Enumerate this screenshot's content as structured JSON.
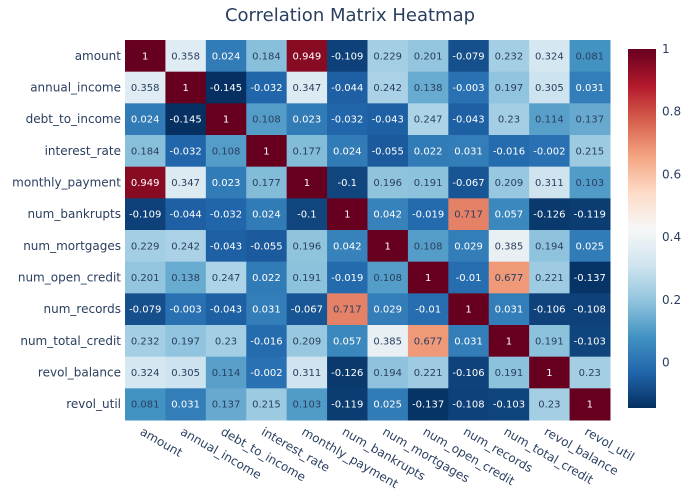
{
  "chart_data": {
    "type": "heatmap",
    "title": "Correlation Matrix Heatmap",
    "labels": [
      "amount",
      "annual_income",
      "debt_to_income",
      "interest_rate",
      "monthly_payment",
      "num_bankrupts",
      "num_mortgages",
      "num_open_credit",
      "num_records",
      "num_total_credit",
      "revol_balance",
      "revol_util"
    ],
    "z": [
      [
        "1",
        "0.358",
        "0.024",
        "0.184",
        "0.949",
        "-0.109",
        "0.229",
        "0.201",
        "-0.079",
        "0.232",
        "0.324",
        "0.081"
      ],
      [
        "0.358",
        "1",
        "-0.145",
        "-0.032",
        "0.347",
        "-0.044",
        "0.242",
        "0.138",
        "-0.003",
        "0.197",
        "0.305",
        "0.031"
      ],
      [
        "0.024",
        "-0.145",
        "1",
        "0.108",
        "0.023",
        "-0.032",
        "-0.043",
        "0.247",
        "-0.043",
        "0.23",
        "0.114",
        "0.137"
      ],
      [
        "0.184",
        "-0.032",
        "0.108",
        "1",
        "0.177",
        "0.024",
        "-0.055",
        "0.022",
        "0.031",
        "-0.016",
        "-0.002",
        "0.215"
      ],
      [
        "0.949",
        "0.347",
        "0.023",
        "0.177",
        "1",
        "-0.1",
        "0.196",
        "0.191",
        "-0.067",
        "0.209",
        "0.311",
        "0.103"
      ],
      [
        "-0.109",
        "-0.044",
        "-0.032",
        "0.024",
        "-0.1",
        "1",
        "0.042",
        "-0.019",
        "0.717",
        "0.057",
        "-0.126",
        "-0.119"
      ],
      [
        "0.229",
        "0.242",
        "-0.043",
        "-0.055",
        "0.196",
        "0.042",
        "1",
        "0.108",
        "0.029",
        "0.385",
        "0.194",
        "0.025"
      ],
      [
        "0.201",
        "0.138",
        "0.247",
        "0.022",
        "0.191",
        "-0.019",
        "0.108",
        "1",
        "-0.01",
        "0.677",
        "0.221",
        "-0.137"
      ],
      [
        "-0.079",
        "-0.003",
        "-0.043",
        "0.031",
        "-0.067",
        "0.717",
        "0.029",
        "-0.01",
        "1",
        "0.031",
        "-0.106",
        "-0.108"
      ],
      [
        "0.232",
        "0.197",
        "0.23",
        "-0.016",
        "0.209",
        "0.057",
        "0.385",
        "0.677",
        "0.031",
        "1",
        "0.191",
        "-0.103"
      ],
      [
        "0.324",
        "0.305",
        "0.114",
        "-0.002",
        "0.311",
        "-0.126",
        "0.194",
        "0.221",
        "-0.106",
        "0.191",
        "1",
        "0.23"
      ],
      [
        "0.081",
        "0.031",
        "0.137",
        "0.215",
        "0.103",
        "-0.119",
        "0.025",
        "-0.137",
        "-0.108",
        "-0.103",
        "0.23",
        "1"
      ]
    ],
    "colorscale": {
      "name": "RdBu",
      "reversed": true,
      "zmin": -0.145,
      "zmax": 1,
      "ticks": [
        "1",
        "0.8",
        "0.6",
        "0.4",
        "0.2",
        "0"
      ],
      "stops": [
        "#053061",
        "#2166ac",
        "#4393c3",
        "#92c5de",
        "#d1e5f0",
        "#f7f7f7",
        "#fddbc7",
        "#f4a582",
        "#d6604d",
        "#b2182b",
        "#67001f"
      ]
    },
    "legend": "colorbar-right",
    "grid": false
  }
}
